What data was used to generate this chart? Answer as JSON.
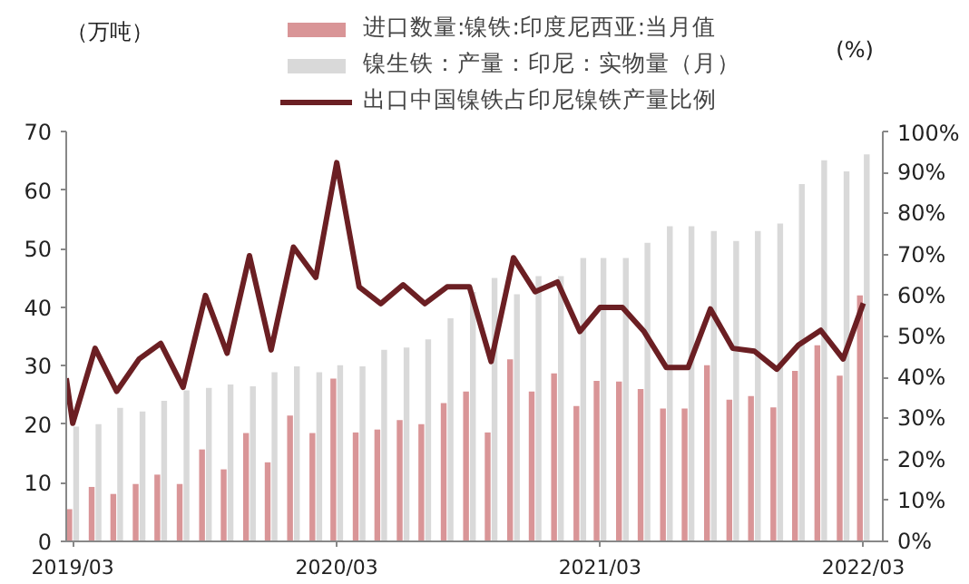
{
  "chart_data": {
    "type": "bar",
    "ylabel": "（万吨）",
    "y2label": "(%)",
    "x": [
      "2019-03",
      "2019-04",
      "2019-05",
      "2019-06",
      "2019-07",
      "2019-08",
      "2019-09",
      "2019-10",
      "2019-11",
      "2019-12",
      "2020-01",
      "2020-02",
      "2020-03",
      "2020-04",
      "2020-05",
      "2020-06",
      "2020-07",
      "2020-08",
      "2020-09",
      "2020-10",
      "2020-11",
      "2020-12",
      "2021-01",
      "2021-02",
      "2021-03",
      "2021-04",
      "2021-05",
      "2021-06",
      "2021-07",
      "2021-08",
      "2021-09",
      "2021-10",
      "2021-11",
      "2021-12",
      "2022-01",
      "2022-02",
      "2022-03"
    ],
    "xlim": [
      "2019-02-20",
      "2022-03-28"
    ],
    "xticks": [
      {
        "value": "2019-03",
        "label": "2019/03"
      },
      {
        "value": "2020-03",
        "label": "2020/03"
      },
      {
        "value": "2021-03",
        "label": "2021/03"
      },
      {
        "value": "2022-03",
        "label": "2022/03"
      }
    ],
    "ylim": [
      0,
      70
    ],
    "yticks": [
      0,
      10,
      20,
      30,
      40,
      50,
      60,
      70
    ],
    "y2lim": [
      0,
      100
    ],
    "y2ticks": [
      {
        "value": 0,
        "label": "0%"
      },
      {
        "value": 10,
        "label": "10%"
      },
      {
        "value": 20,
        "label": "20%"
      },
      {
        "value": 30,
        "label": "30%"
      },
      {
        "value": 40,
        "label": "40%"
      },
      {
        "value": 50,
        "label": "50%"
      },
      {
        "value": 60,
        "label": "60%"
      },
      {
        "value": 70,
        "label": "70%"
      },
      {
        "value": 80,
        "label": "80%"
      },
      {
        "value": 90,
        "label": "90%"
      },
      {
        "value": 100,
        "label": "100%"
      }
    ],
    "grid": false,
    "legend": "top",
    "series": [
      {
        "name": "进口数量:镍铁:印度尼西亚:当月值",
        "color": "#d99597",
        "values": [
          5.5,
          9.3,
          8.1,
          9.8,
          11.4,
          9.8,
          15.7,
          12.3,
          18.5,
          13.5,
          21.5,
          18.5,
          27.8,
          18.6,
          19.1,
          20.7,
          20.0,
          23.6,
          25.6,
          18.6,
          31.1,
          25.6,
          28.7,
          23.1,
          27.4,
          27.3,
          26.0,
          22.7,
          22.7,
          30.1,
          24.2,
          24.8,
          22.9,
          29.1,
          33.5,
          28.3,
          42.0
        ]
      },
      {
        "name": "镍生铁：产量：印尼：实物量（月）",
        "color": "#d9d9d9",
        "values": [
          19.6,
          20.0,
          22.8,
          22.2,
          24.0,
          25.8,
          26.2,
          26.8,
          26.5,
          28.9,
          29.9,
          28.9,
          30.1,
          29.9,
          32.7,
          33.1,
          34.5,
          38.1,
          42.6,
          45.0,
          42.2,
          45.3,
          45.3,
          48.4,
          48.4,
          48.4,
          51.0,
          53.8,
          53.8,
          53.0,
          51.3,
          53.0,
          54.3,
          61.0,
          65.1,
          63.2,
          66.1
        ]
      },
      {
        "name": "出口中国镍铁占印尼镍铁产量比例",
        "type": "line",
        "axis": "y2",
        "color": "#6b1f23",
        "x": [
          "2019-02-20",
          "2019-03",
          "2019-04",
          "2019-05",
          "2019-06",
          "2019-07",
          "2019-08",
          "2019-09",
          "2019-10",
          "2019-11",
          "2019-12",
          "2020-01",
          "2020-02",
          "2020-03",
          "2020-04",
          "2020-05",
          "2020-06",
          "2020-07",
          "2020-08",
          "2020-09",
          "2020-10",
          "2020-11",
          "2020-12",
          "2021-01",
          "2021-02",
          "2021-03",
          "2021-04",
          "2021-05",
          "2021-06",
          "2021-07",
          "2021-08",
          "2021-09",
          "2021-10",
          "2021-11",
          "2021-12",
          "2022-01",
          "2022-02",
          "2022-03"
        ],
        "values": [
          39.8,
          28.8,
          47.1,
          36.6,
          44.5,
          48.3,
          37.6,
          60.0,
          45.9,
          69.7,
          46.7,
          71.8,
          64.4,
          92.4,
          62.1,
          58.0,
          62.6,
          58.0,
          62.1,
          62.1,
          43.9,
          69.2,
          60.9,
          63.3,
          51.2,
          57.1,
          57.1,
          51.2,
          42.4,
          42.4,
          56.7,
          47.1,
          46.4,
          42.0,
          47.9,
          51.5,
          44.5,
          58.1
        ]
      }
    ]
  }
}
